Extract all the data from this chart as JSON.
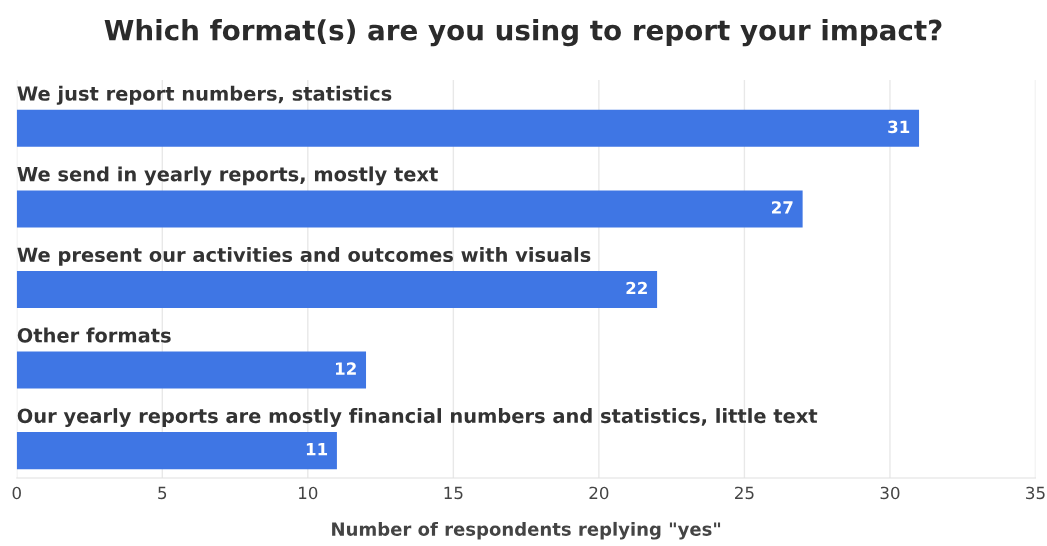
{
  "chart_data": {
    "type": "bar",
    "orientation": "horizontal",
    "title": "Which format(s) are you using to report your impact?",
    "xlabel": "Number of respondents replying \"yes\"",
    "categories": [
      "We just report numbers, statistics",
      "We send in yearly reports, mostly text",
      "We present our activities and outcomes with visuals",
      "Other formats",
      "Our yearly reports are mostly financial numbers and statistics, little text"
    ],
    "values": [
      31,
      27,
      22,
      12,
      11
    ],
    "color": "#3f76e4",
    "data_labels": true,
    "xlim": [
      0,
      35
    ],
    "xticks": [
      0,
      5,
      10,
      15,
      20,
      25,
      30,
      35
    ],
    "grid": "x"
  }
}
